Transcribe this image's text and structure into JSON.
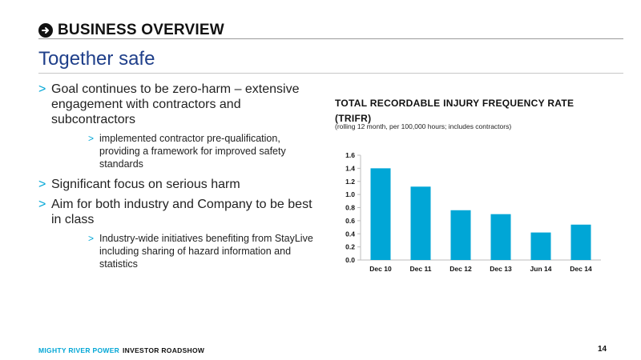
{
  "header": {
    "section_title": "BUSINESS OVERVIEW",
    "icon": "arrow-right-circle-icon"
  },
  "page_title": "Together safe",
  "bullets": [
    {
      "level": 1,
      "text": "Goal continues to be zero-harm – extensive engagement with contractors and subcontractors"
    },
    {
      "level": 2,
      "text": "implemented contractor pre-qualification, providing a framework for improved safety standards"
    },
    {
      "level": 1,
      "text": "Significant focus on serious harm"
    },
    {
      "level": 1,
      "text": "Aim for both industry and Company to be best in class"
    },
    {
      "level": 2,
      "text": "Industry-wide initiatives benefiting from StayLive including sharing of hazard information and statistics"
    }
  ],
  "bullet_marker": ">",
  "chart_data": {
    "type": "bar",
    "title": "TOTAL RECORDABLE INJURY FREQUENCY RATE (TRIFR)",
    "subtitle": "(rolling 12 month, per 100,000 hours; includes contractors)",
    "categories": [
      "Dec 10",
      "Dec 11",
      "Dec 12",
      "Dec 13",
      "Jun 14",
      "Dec 14"
    ],
    "values": [
      1.4,
      1.12,
      0.76,
      0.7,
      0.42,
      0.54
    ],
    "ylim": [
      0,
      1.6
    ],
    "yticks": [
      "0.0",
      "0.2",
      "0.4",
      "0.6",
      "0.8",
      "1.0",
      "1.2",
      "1.4",
      "1.6"
    ],
    "xlabel": "",
    "ylabel": "",
    "grid": false,
    "bar_color": "#00a6d6"
  },
  "footer": {
    "brand": "MIGHTY RIVER POWER",
    "label": "INVESTOR ROADSHOW",
    "page_number": "14"
  },
  "colors": {
    "accent": "#00a6d6",
    "title": "#1f3f8a",
    "text": "#222222"
  }
}
